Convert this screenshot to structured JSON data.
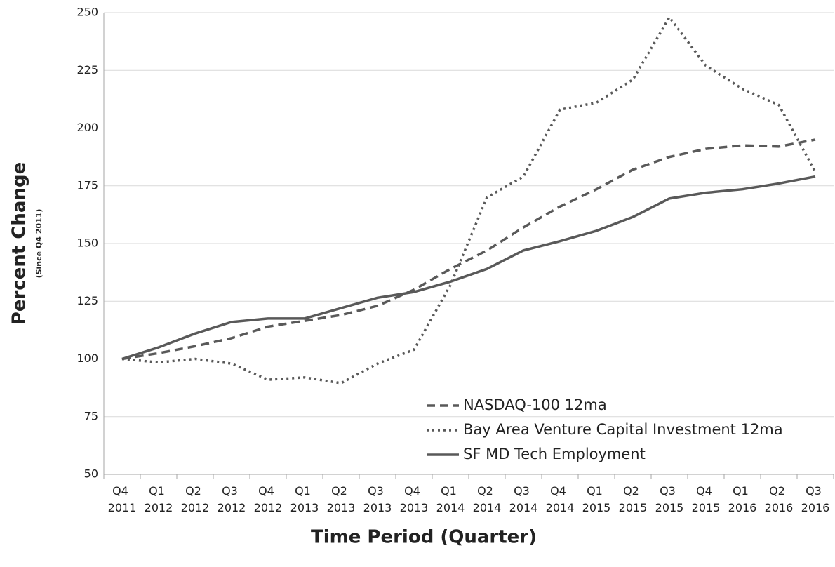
{
  "chart_data": {
    "type": "line",
    "x_label": "Time Period (Quarter)",
    "y_label": "Percent Change",
    "y_label_note": "(Since Q4 2011)",
    "categories": [
      "Q4 2011",
      "Q1 2012",
      "Q2 2012",
      "Q3 2012",
      "Q4 2012",
      "Q1 2013",
      "Q2 2013",
      "Q3 2013",
      "Q4 2013",
      "Q1 2014",
      "Q2 2014",
      "Q3 2014",
      "Q4 2014",
      "Q1 2015",
      "Q2 2015",
      "Q3 2015",
      "Q4 2015",
      "Q1 2016",
      "Q2 2016",
      "Q3 2016"
    ],
    "series": [
      {
        "name": "NASDAQ-100 12ma",
        "color": "#595959",
        "dash": "dashed",
        "values": [
          100,
          102.5,
          105.5,
          109,
          114,
          116.5,
          119,
          123,
          130,
          139,
          147,
          157,
          166,
          173.5,
          182,
          187.5,
          191,
          192.5,
          192,
          195
        ]
      },
      {
        "name": "Bay Area Venture Capital Investment 12ma",
        "color": "#595959",
        "dash": "dotted",
        "values": [
          100,
          98.5,
          100,
          98,
          91,
          92,
          89.5,
          98,
          104,
          132,
          170,
          179,
          208,
          211,
          221,
          248,
          227,
          217,
          210,
          181
        ]
      },
      {
        "name": "SF MD Tech Employment",
        "color": "#595959",
        "dash": "solid",
        "values": [
          100,
          105,
          111,
          116,
          117.5,
          117.5,
          122,
          126.5,
          129,
          133.5,
          139,
          147,
          151,
          155.5,
          161.5,
          169.5,
          172,
          173.5,
          176,
          179
        ]
      }
    ],
    "ylim": [
      50,
      250
    ],
    "yticks": [
      50,
      75,
      100,
      125,
      150,
      175,
      200,
      225,
      250
    ],
    "grid": true,
    "legend": "lower right"
  }
}
